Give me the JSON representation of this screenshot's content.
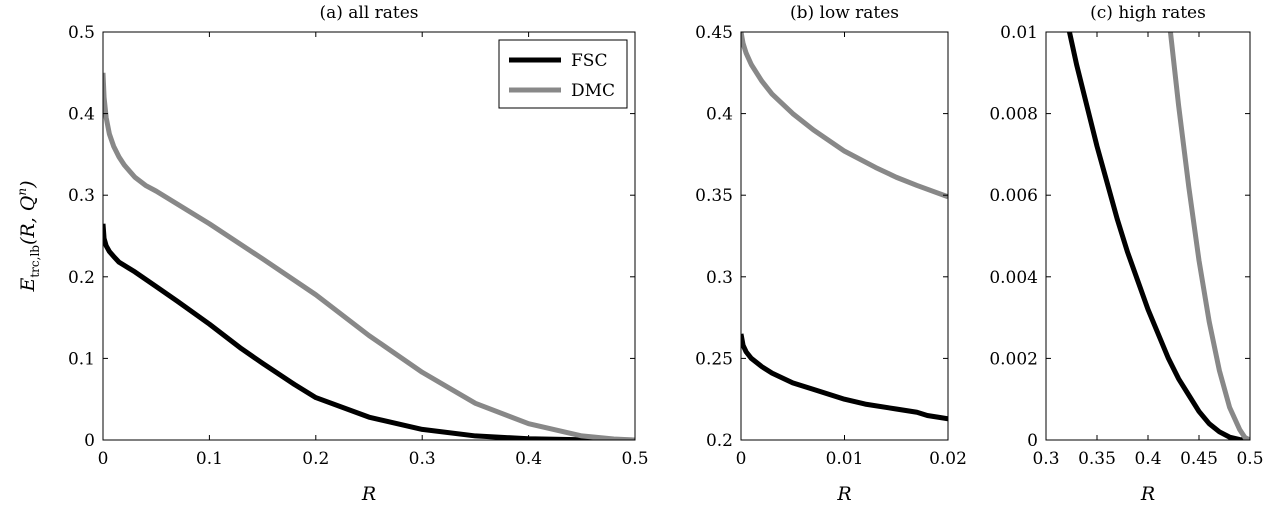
{
  "ylabel": {
    "main": "E",
    "sub": "trc,lb",
    "args": "(R, Q",
    "sup": "n",
    "close": ")"
  },
  "colors": {
    "FSC": "#000000",
    "DMC": "#888888"
  },
  "chart_data": [
    {
      "type": "line",
      "title": "(a) all rates",
      "xlabel": "R",
      "xlim": [
        0,
        0.5
      ],
      "ylim": [
        0,
        0.5
      ],
      "xticks": [
        "0",
        "0.1",
        "0.2",
        "0.3",
        "0.4",
        "0.5"
      ],
      "yticks": [
        "0",
        "0.1",
        "0.2",
        "0.3",
        "0.4",
        "0.5"
      ],
      "legend": {
        "position": "top-right",
        "entries": [
          "FSC",
          "DMC"
        ]
      },
      "series": [
        {
          "name": "FSC",
          "x": [
            0,
            0.001,
            0.003,
            0.006,
            0.01,
            0.015,
            0.02,
            0.03,
            0.05,
            0.07,
            0.1,
            0.13,
            0.15,
            0.18,
            0.2,
            0.25,
            0.3,
            0.35,
            0.4,
            0.45,
            0.5
          ],
          "y": [
            0.265,
            0.247,
            0.238,
            0.231,
            0.225,
            0.218,
            0.214,
            0.206,
            0.188,
            0.17,
            0.142,
            0.112,
            0.094,
            0.068,
            0.052,
            0.028,
            0.013,
            0.005,
            0.0015,
            0.0003,
            0
          ]
        },
        {
          "name": "DMC",
          "x": [
            0,
            0.001,
            0.003,
            0.006,
            0.01,
            0.015,
            0.02,
            0.03,
            0.04,
            0.05,
            0.1,
            0.15,
            0.2,
            0.25,
            0.3,
            0.35,
            0.4,
            0.45,
            0.48,
            0.5
          ],
          "y": [
            0.45,
            0.42,
            0.395,
            0.375,
            0.36,
            0.347,
            0.337,
            0.322,
            0.312,
            0.305,
            0.265,
            0.222,
            0.178,
            0.128,
            0.083,
            0.045,
            0.02,
            0.005,
            0.0012,
            0
          ]
        }
      ]
    },
    {
      "type": "line",
      "title": "(b) low rates",
      "xlabel": "R",
      "xlim": [
        0,
        0.02
      ],
      "ylim": [
        0.2,
        0.45
      ],
      "xticks": [
        "0",
        "0.01",
        "0.02"
      ],
      "yticks": [
        "0.2",
        "0.25",
        "0.3",
        "0.35",
        "0.4",
        "0.45"
      ],
      "series": [
        {
          "name": "FSC",
          "x": [
            0,
            0.0002,
            0.0005,
            0.001,
            0.002,
            0.003,
            0.005,
            0.007,
            0.01,
            0.012,
            0.015,
            0.017,
            0.018,
            0.019,
            0.02
          ],
          "y": [
            0.265,
            0.258,
            0.254,
            0.25,
            0.245,
            0.241,
            0.235,
            0.231,
            0.225,
            0.222,
            0.219,
            0.217,
            0.215,
            0.214,
            0.213
          ]
        },
        {
          "name": "DMC",
          "x": [
            0,
            0.0002,
            0.0005,
            0.001,
            0.002,
            0.003,
            0.005,
            0.007,
            0.01,
            0.013,
            0.015,
            0.017,
            0.02
          ],
          "y": [
            0.45,
            0.443,
            0.437,
            0.43,
            0.42,
            0.412,
            0.4,
            0.39,
            0.377,
            0.367,
            0.361,
            0.356,
            0.349
          ]
        }
      ]
    },
    {
      "type": "line",
      "title": "(c) high rates",
      "xlabel": "R",
      "xlim": [
        0.3,
        0.5
      ],
      "ylim": [
        0,
        0.01
      ],
      "xticks": [
        "0.3",
        "0.35",
        "0.4",
        "0.45",
        "0.5"
      ],
      "yticks": [
        "0",
        "0.002",
        "0.004",
        "0.006",
        "0.008",
        "0.01"
      ],
      "series": [
        {
          "name": "FSC",
          "x": [
            0.323,
            0.33,
            0.34,
            0.35,
            0.36,
            0.37,
            0.38,
            0.39,
            0.4,
            0.41,
            0.42,
            0.43,
            0.44,
            0.45,
            0.46,
            0.47,
            0.48,
            0.49,
            0.497
          ],
          "y": [
            0.01,
            0.0092,
            0.0082,
            0.0072,
            0.0063,
            0.0054,
            0.0046,
            0.0039,
            0.0032,
            0.0026,
            0.002,
            0.0015,
            0.0011,
            0.0007,
            0.0004,
            0.0002,
            7e-05,
            1e-05,
            0
          ]
        },
        {
          "name": "DMC",
          "x": [
            0.422,
            0.43,
            0.44,
            0.45,
            0.46,
            0.47,
            0.48,
            0.49,
            0.495,
            0.5
          ],
          "y": [
            0.01,
            0.0082,
            0.0062,
            0.0044,
            0.0029,
            0.0017,
            0.0008,
            0.00025,
            6e-05,
            0
          ]
        }
      ]
    }
  ]
}
